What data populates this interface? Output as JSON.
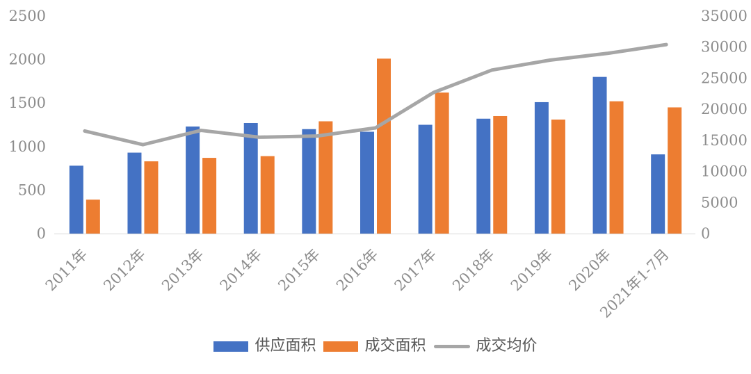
{
  "chart_data": {
    "type": "combo",
    "title": "",
    "categories": [
      "2011年",
      "2012年",
      "2013年",
      "2014年",
      "2015年",
      "2016年",
      "2017年",
      "2018年",
      "2019年",
      "2020年",
      "2021年1-7月"
    ],
    "series": [
      {
        "name": "供应面积",
        "type": "bar",
        "axis": "left",
        "color": "#4472C4",
        "values": [
          780,
          930,
          1230,
          1270,
          1200,
          1170,
          1250,
          1320,
          1510,
          1800,
          910
        ]
      },
      {
        "name": "成交面积",
        "type": "bar",
        "axis": "left",
        "color": "#ED7D31",
        "values": [
          390,
          830,
          870,
          890,
          1290,
          2010,
          1620,
          1350,
          1310,
          1520,
          1450
        ]
      },
      {
        "name": "成交均价",
        "type": "line",
        "axis": "right",
        "color": "#A6A6A6",
        "values": [
          16500,
          14300,
          16600,
          15500,
          15700,
          17000,
          22700,
          26300,
          27900,
          29000,
          30400
        ]
      }
    ],
    "left_axis": {
      "min": 0,
      "max": 2500,
      "ticks": [
        0,
        500,
        1000,
        1500,
        2000,
        2500
      ]
    },
    "right_axis": {
      "min": 0,
      "max": 35000,
      "ticks": [
        0,
        5000,
        10000,
        15000,
        20000,
        25000,
        30000,
        35000
      ]
    },
    "grid": false,
    "legend_position": "bottom",
    "x_label_rotation_deg": -45
  },
  "styles": {
    "axis_text_color": "#8C8C8C",
    "legend_text_color": "#595959",
    "axis_line_color": "#D9D9D9",
    "background": "#FFFFFF"
  }
}
